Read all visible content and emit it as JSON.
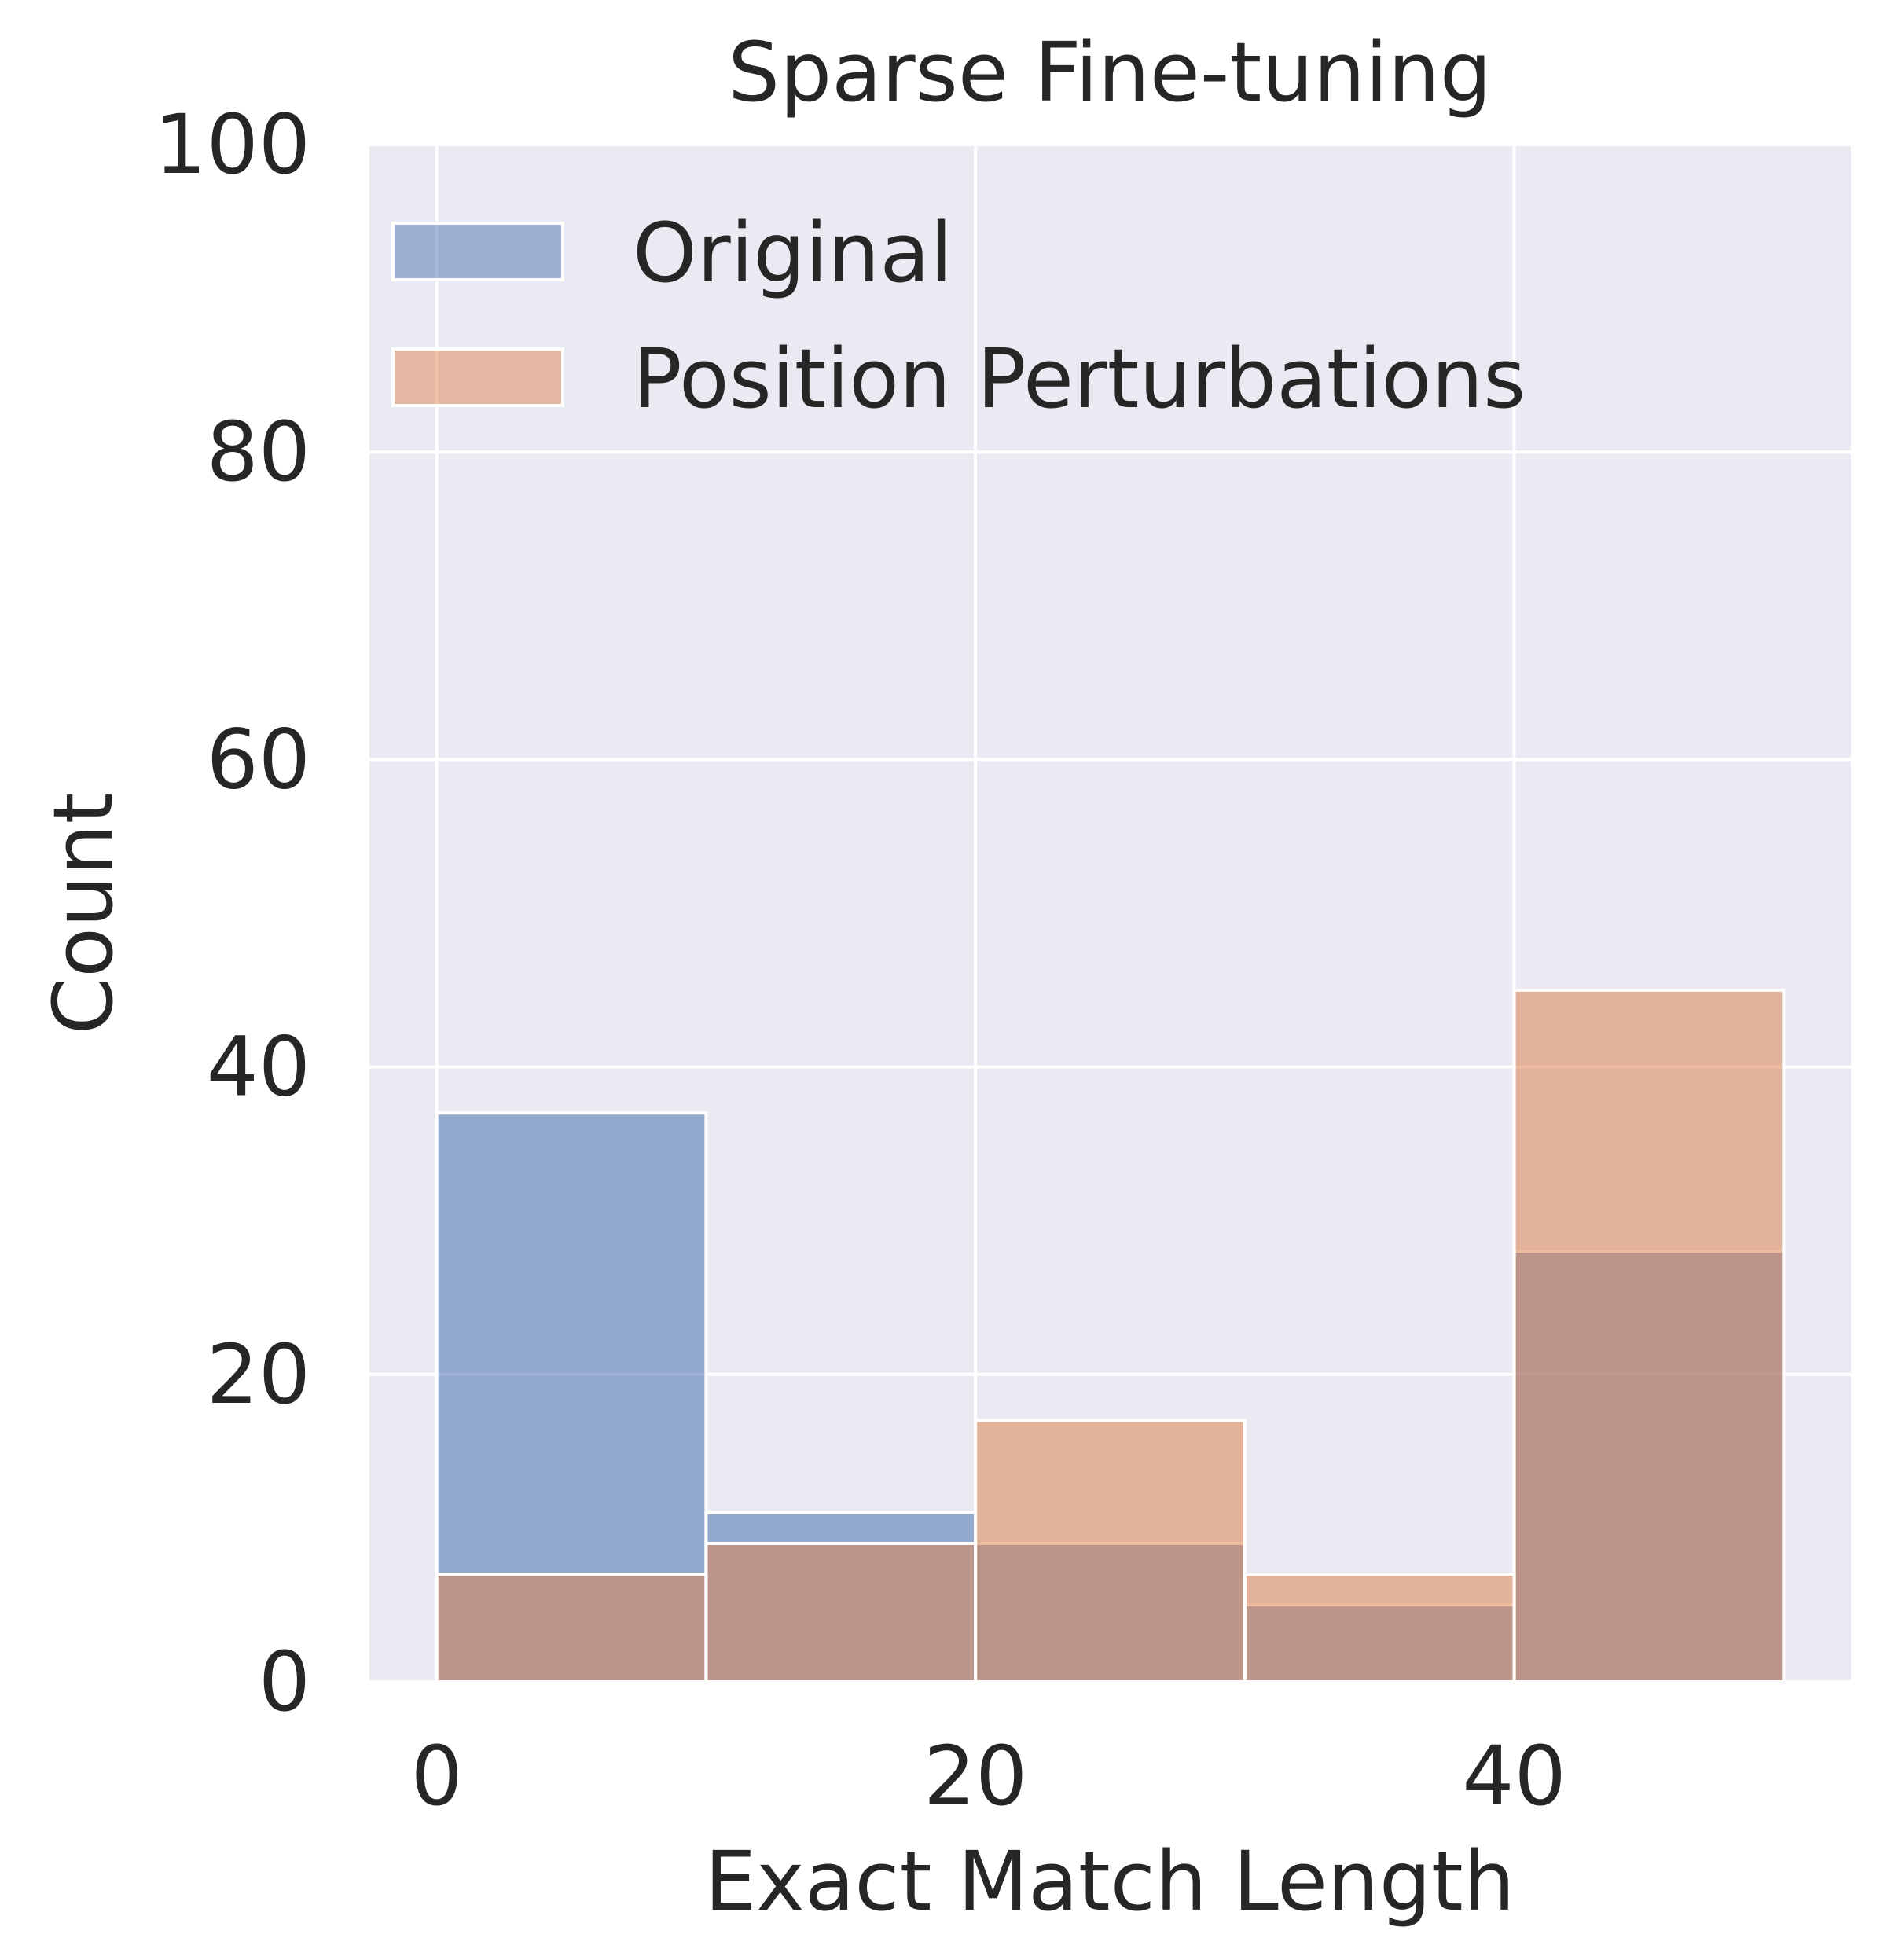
{
  "chart_data": {
    "type": "bar",
    "title": "Sparse Fine-tuning",
    "xlabel": "Exact Match Length",
    "ylabel": "Count",
    "xlim": [
      -2.5,
      52.5
    ],
    "ylim": [
      0,
      100
    ],
    "x_ticks": [
      0,
      20,
      40
    ],
    "y_ticks": [
      0,
      20,
      40,
      60,
      80,
      100
    ],
    "grid": true,
    "legend_position": "top-left",
    "bin_edges": [
      0,
      10,
      20,
      30,
      40,
      50
    ],
    "series": [
      {
        "name": "Original",
        "color": "#4c72b0",
        "values": [
          37,
          11,
          9,
          5,
          28
        ]
      },
      {
        "name": "Position Perturbations",
        "color": "#dd8452",
        "values": [
          7,
          9,
          17,
          7,
          45
        ]
      }
    ],
    "overlap_color": "#9894aa"
  }
}
